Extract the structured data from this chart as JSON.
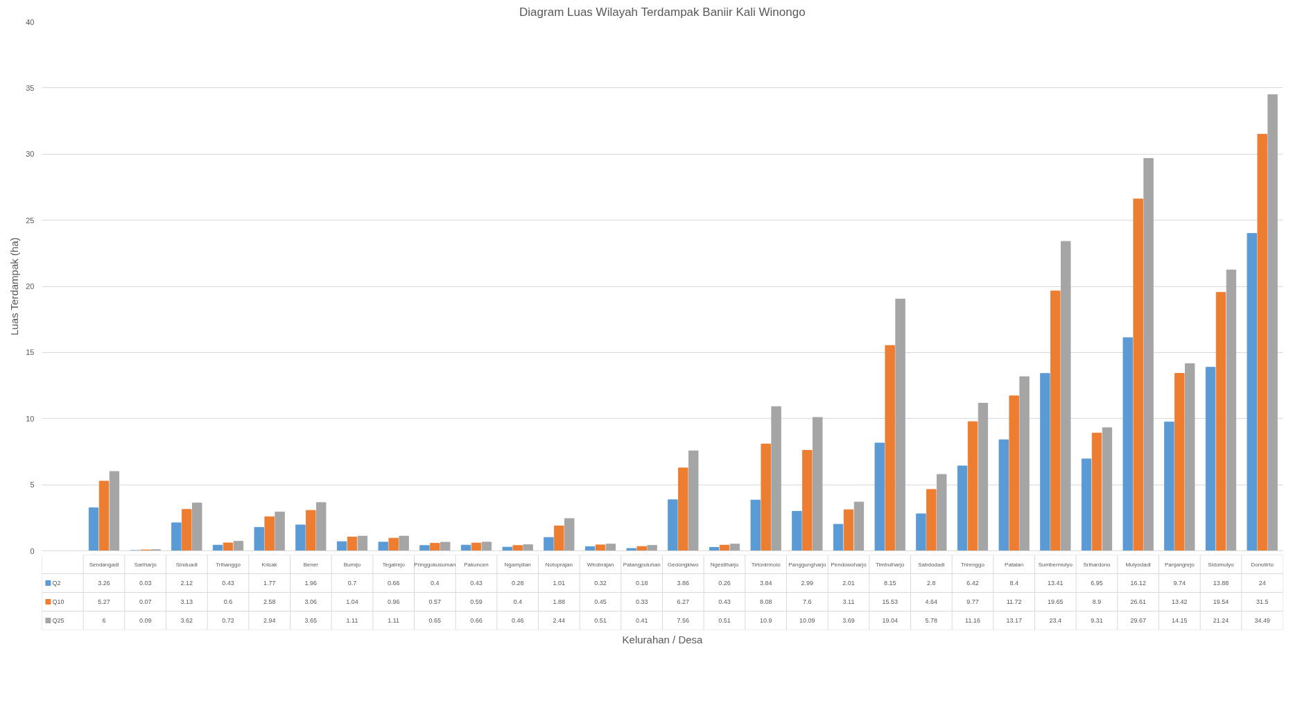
{
  "chart_data": {
    "type": "bar",
    "title": "Diagram Luas Wilayah Terdampak Baniir Kali Winongo",
    "annotations": [
      "Kelurahan / Desa"
    ],
    "ylabel": "Luas Terdampak (ha)",
    "categories": [
      "Sendangadi",
      "Sariharjo",
      "Sinduadi",
      "Trihanggo",
      "Kricak",
      "Bener",
      "Bumijo",
      "Tegalrejo",
      "Pringgokusuman",
      "Pakuncen",
      "Ngampilan",
      "Notoprajan",
      "Wirobrajan",
      "Patangpuluhan",
      "Gedongkiwo",
      "Ngestiharjo",
      "Tirtonirmolo",
      "Panggungharjo",
      "Pendowoharjo",
      "Timbulharjo",
      "Sabdodadi",
      "Trirenggo",
      "Patalan",
      "Sumbermulyo",
      "Srihardono",
      "Mulyodadi",
      "Panjangrejo",
      "Sidomulyo",
      "Donotirto"
    ],
    "series": [
      {
        "name": "Q2",
        "color": "#5b9bd5",
        "values": [
          3.26,
          0.03,
          2.12,
          0.43,
          1.77,
          1.96,
          0.7,
          0.66,
          0.4,
          0.43,
          0.28,
          1.01,
          0.32,
          0.18,
          3.86,
          0.26,
          3.84,
          2.99,
          2.01,
          8.15,
          2.8,
          6.42,
          8.4,
          13.41,
          6.95,
          16.12,
          9.74,
          13.88,
          24
        ]
      },
      {
        "name": "Q10",
        "color": "#ed7d31",
        "values": [
          5.27,
          0.07,
          3.13,
          0.6,
          2.58,
          3.06,
          1.04,
          0.96,
          0.57,
          0.59,
          0.4,
          1.88,
          0.45,
          0.33,
          6.27,
          0.43,
          8.08,
          7.6,
          3.11,
          15.53,
          4.64,
          9.77,
          11.72,
          19.65,
          8.9,
          26.61,
          13.42,
          19.54,
          31.5
        ]
      },
      {
        "name": "Q25",
        "color": "#a5a5a5",
        "values": [
          6,
          0.09,
          3.62,
          0.72,
          2.94,
          3.65,
          1.11,
          1.11,
          0.65,
          0.66,
          0.46,
          2.44,
          0.51,
          0.41,
          7.56,
          0.51,
          10.9,
          10.09,
          3.69,
          19.04,
          5.78,
          11.16,
          13.17,
          23.4,
          9.31,
          29.67,
          14.15,
          21.24,
          34.49
        ]
      }
    ],
    "ylim": [
      0,
      40
    ],
    "yticks": [
      0,
      5,
      10,
      15,
      20,
      25,
      30,
      35,
      40
    ],
    "grid": "y",
    "legend": "bottom",
    "data_labels": true,
    "tick_labels": "y"
  }
}
